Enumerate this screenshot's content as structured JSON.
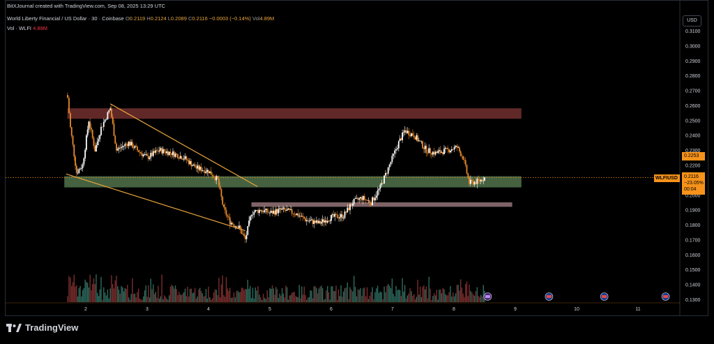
{
  "header": {
    "attribution": "BitXJournal created with TradingView.com, Sep 08, 2025 13:29 UTC",
    "symbol_line": "World Liberty Financial / US Dollar · 30 · Coinbase",
    "open_label": "O",
    "open": "0.2119",
    "high_label": "H",
    "high": "0.2124",
    "low_label": "L",
    "low": "0.2089",
    "close_label": "C",
    "close": "0.2116",
    "change": "−0.0003 (−0.14%)",
    "vol_label": "Vol",
    "vol": "4.89M",
    "vol_line_label": "Vol · WLFI",
    "vol_line_value": "4.89M"
  },
  "currency_button": "USD",
  "footer_brand": "TradingView",
  "price_tags": {
    "symbol": "WLFIUSD",
    "last_price": "0.2116",
    "change_pct": "−23.05%",
    "countdown": "00:04",
    "level": "0.2253"
  },
  "colors": {
    "up": "#ffffff",
    "down": "#e8892b",
    "resistance_zone": "#6b2c2c",
    "support_zone": "#4c6b47",
    "minor_zone": "#8c6e72",
    "trendline": "#e8a53c",
    "price_line": "#f7931a"
  },
  "chart_data": {
    "type": "candlestick",
    "y_axis": {
      "min": 0.13,
      "max": 0.31,
      "position": "right",
      "ticks": [
        "0.3100",
        "0.3000",
        "0.2900",
        "0.2800",
        "0.2700",
        "0.2600",
        "0.2500",
        "0.2400",
        "0.2300",
        "0.2200",
        "0.2100",
        "0.2000",
        "0.1900",
        "0.1800",
        "0.1700",
        "0.1600",
        "0.1500",
        "0.1400",
        "0.1300"
      ]
    },
    "x_axis": {
      "ticks": [
        "2",
        "3",
        "4",
        "5",
        "6",
        "7",
        "8",
        "9",
        "10",
        "11"
      ],
      "range_days": [
        1.65,
        11.75
      ]
    },
    "price_path": [
      [
        1.68,
        0.275
      ],
      [
        1.75,
        0.245
      ],
      [
        1.85,
        0.215
      ],
      [
        1.95,
        0.22
      ],
      [
        2.05,
        0.25
      ],
      [
        2.15,
        0.23
      ],
      [
        2.25,
        0.245
      ],
      [
        2.4,
        0.258
      ],
      [
        2.5,
        0.23
      ],
      [
        2.7,
        0.235
      ],
      [
        2.9,
        0.228
      ],
      [
        3.0,
        0.225
      ],
      [
        3.2,
        0.23
      ],
      [
        3.4,
        0.228
      ],
      [
        3.6,
        0.225
      ],
      [
        3.8,
        0.218
      ],
      [
        4.0,
        0.216
      ],
      [
        4.15,
        0.21
      ],
      [
        4.25,
        0.19
      ],
      [
        4.35,
        0.182
      ],
      [
        4.5,
        0.178
      ],
      [
        4.6,
        0.17
      ],
      [
        4.7,
        0.188
      ],
      [
        4.85,
        0.19
      ],
      [
        5.0,
        0.188
      ],
      [
        5.2,
        0.19
      ],
      [
        5.4,
        0.188
      ],
      [
        5.6,
        0.183
      ],
      [
        5.8,
        0.181
      ],
      [
        6.0,
        0.185
      ],
      [
        6.2,
        0.186
      ],
      [
        6.35,
        0.195
      ],
      [
        6.5,
        0.198
      ],
      [
        6.65,
        0.195
      ],
      [
        6.8,
        0.205
      ],
      [
        6.95,
        0.22
      ],
      [
        7.1,
        0.235
      ],
      [
        7.2,
        0.243
      ],
      [
        7.35,
        0.24
      ],
      [
        7.55,
        0.23
      ],
      [
        7.7,
        0.228
      ],
      [
        7.9,
        0.23
      ],
      [
        8.05,
        0.232
      ],
      [
        8.15,
        0.225
      ],
      [
        8.25,
        0.208
      ],
      [
        8.4,
        0.209
      ],
      [
        8.5,
        0.2116
      ]
    ],
    "zones": [
      {
        "type": "resistance",
        "x_from": 1.7,
        "x_to": 9.1,
        "y_from": 0.251,
        "y_to": 0.258
      },
      {
        "type": "support",
        "x_from": 1.65,
        "x_to": 9.1,
        "y_from": 0.205,
        "y_to": 0.2125
      },
      {
        "type": "minor",
        "x_from": 4.7,
        "x_to": 8.95,
        "y_from": 0.192,
        "y_to": 0.195
      }
    ],
    "trendlines": [
      {
        "from": [
          2.4,
          0.261
        ],
        "to": [
          4.8,
          0.2055
        ]
      },
      {
        "from": [
          1.68,
          0.214
        ],
        "to": [
          4.6,
          0.176
        ]
      }
    ],
    "price_line": 0.2116,
    "event_markers": [
      8.55,
      9.55,
      10.45,
      11.45
    ]
  }
}
